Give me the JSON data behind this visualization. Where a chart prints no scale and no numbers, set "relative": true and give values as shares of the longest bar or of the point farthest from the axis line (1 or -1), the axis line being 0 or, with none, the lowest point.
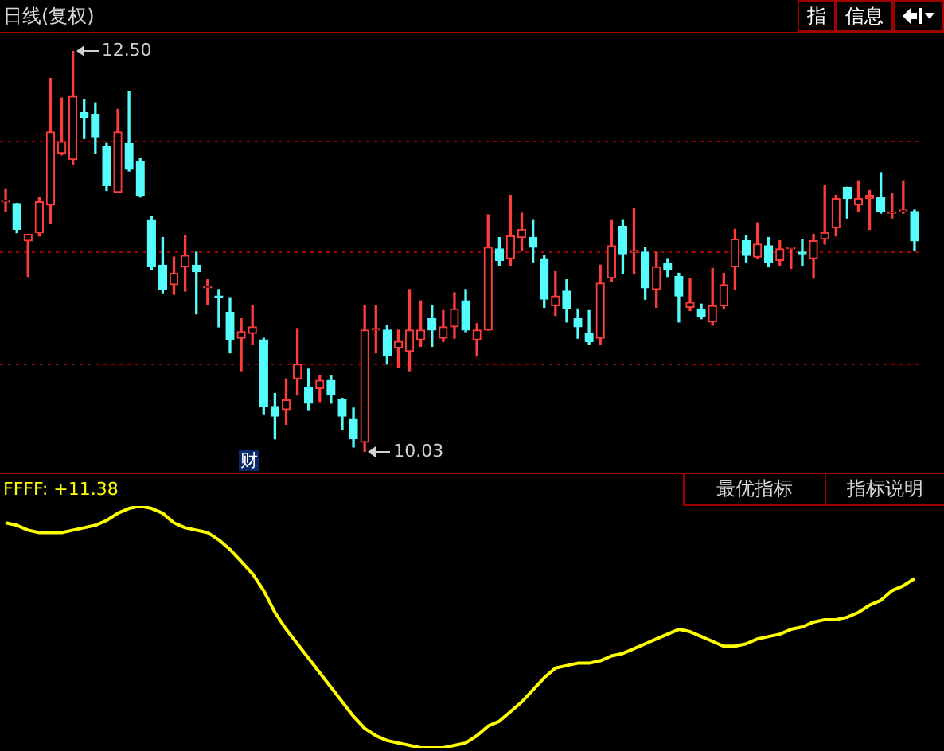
{
  "chart_data": [
    {
      "type": "candlestick",
      "title": "日线(复权)",
      "grid": "y",
      "categories": [
        null,
        null,
        null,
        null,
        null,
        null,
        null,
        null,
        null,
        null,
        null,
        null,
        null,
        null,
        null,
        null,
        null,
        null,
        null,
        null,
        null,
        null,
        null,
        null,
        null,
        null,
        null,
        null,
        null,
        null,
        null,
        null,
        null,
        null,
        null,
        null,
        null,
        null,
        null,
        null,
        null,
        null,
        null,
        null,
        null,
        null,
        null,
        null,
        null,
        null,
        null,
        null,
        null,
        null,
        null,
        null,
        null,
        null,
        null,
        null,
        null,
        null,
        null,
        null,
        null,
        null,
        null,
        null,
        null,
        null,
        null,
        null,
        null,
        null,
        null,
        null,
        null,
        null,
        null,
        null,
        null,
        null
      ],
      "yticks": [
        {
          "value": 10.57,
          "label": null
        },
        {
          "value": 11.26,
          "label": null
        },
        {
          "value": 11.94,
          "label": null
        }
      ],
      "ohlc": [
        [
          11.57,
          11.65,
          11.51,
          11.57
        ],
        [
          11.56,
          11.56,
          11.38,
          11.4
        ],
        [
          11.33,
          11.37,
          11.11,
          11.37
        ],
        [
          11.38,
          11.6,
          11.36,
          11.57
        ],
        [
          11.55,
          12.33,
          11.44,
          12.0
        ],
        [
          11.87,
          12.21,
          11.86,
          11.94
        ],
        [
          11.83,
          12.5,
          11.8,
          12.22
        ],
        [
          12.12,
          12.2,
          11.96,
          12.09
        ],
        [
          12.11,
          12.18,
          11.87,
          11.97
        ],
        [
          11.91,
          11.93,
          11.64,
          11.67
        ],
        [
          11.63,
          12.14,
          11.63,
          12.0
        ],
        [
          11.93,
          12.25,
          11.76,
          11.77
        ],
        [
          11.82,
          11.84,
          11.6,
          11.61
        ],
        [
          11.46,
          11.48,
          11.15,
          11.17
        ],
        [
          11.18,
          11.35,
          11.01,
          11.03
        ],
        [
          11.06,
          11.23,
          11.0,
          11.13
        ],
        [
          11.17,
          11.36,
          11.02,
          11.24
        ],
        [
          11.18,
          11.26,
          10.88,
          11.14
        ],
        [
          11.04,
          11.09,
          10.94,
          11.04
        ],
        [
          10.99,
          11.03,
          10.8,
          10.98
        ],
        [
          10.89,
          10.98,
          10.64,
          10.72
        ],
        [
          10.73,
          10.85,
          10.53,
          10.77
        ],
        [
          10.76,
          10.93,
          10.69,
          10.8
        ],
        [
          10.72,
          10.73,
          10.26,
          10.31
        ],
        [
          10.31,
          10.39,
          10.11,
          10.25
        ],
        [
          10.29,
          10.48,
          10.2,
          10.35
        ],
        [
          10.48,
          10.79,
          10.38,
          10.57
        ],
        [
          10.43,
          10.54,
          10.29,
          10.33
        ],
        [
          10.42,
          10.5,
          10.34,
          10.47
        ],
        [
          10.47,
          10.5,
          10.33,
          10.38
        ],
        [
          10.35,
          10.36,
          10.17,
          10.25
        ],
        [
          10.23,
          10.3,
          10.06,
          10.11
        ],
        [
          10.09,
          10.93,
          10.03,
          10.78
        ],
        [
          10.78,
          10.93,
          10.64,
          10.78
        ],
        [
          10.78,
          10.81,
          10.57,
          10.62
        ],
        [
          10.67,
          10.78,
          10.55,
          10.71
        ],
        [
          10.65,
          11.03,
          10.53,
          10.78
        ],
        [
          10.72,
          10.96,
          10.68,
          10.78
        ],
        [
          10.85,
          10.93,
          10.68,
          10.78
        ],
        [
          10.73,
          10.9,
          10.71,
          10.8
        ],
        [
          10.8,
          11.01,
          10.73,
          10.91
        ],
        [
          10.96,
          11.03,
          10.77,
          10.78
        ],
        [
          10.72,
          10.82,
          10.62,
          10.78
        ],
        [
          10.78,
          11.49,
          10.78,
          11.29
        ],
        [
          11.28,
          11.35,
          11.18,
          11.21
        ],
        [
          11.22,
          11.61,
          11.18,
          11.36
        ],
        [
          11.35,
          11.5,
          11.27,
          11.4
        ],
        [
          11.35,
          11.46,
          11.2,
          11.29
        ],
        [
          11.22,
          11.24,
          10.92,
          10.97
        ],
        [
          10.93,
          11.14,
          10.87,
          10.99
        ],
        [
          11.02,
          11.09,
          10.83,
          10.91
        ],
        [
          10.85,
          10.91,
          10.73,
          10.8
        ],
        [
          10.76,
          10.9,
          10.69,
          10.71
        ],
        [
          10.73,
          11.18,
          10.69,
          11.07
        ],
        [
          11.1,
          11.46,
          11.08,
          11.3
        ],
        [
          11.42,
          11.46,
          11.13,
          11.25
        ],
        [
          11.26,
          11.53,
          11.13,
          11.26
        ],
        [
          11.26,
          11.29,
          10.97,
          11.04
        ],
        [
          11.03,
          11.26,
          10.92,
          11.17
        ],
        [
          11.19,
          11.22,
          11.11,
          11.15
        ],
        [
          11.11,
          11.13,
          10.83,
          10.99
        ],
        [
          10.92,
          11.1,
          10.9,
          10.95
        ],
        [
          10.91,
          10.94,
          10.85,
          10.86
        ],
        [
          10.83,
          11.16,
          10.81,
          10.93
        ],
        [
          10.93,
          11.13,
          10.91,
          11.06
        ],
        [
          11.17,
          11.4,
          11.03,
          11.34
        ],
        [
          11.33,
          11.36,
          11.2,
          11.24
        ],
        [
          11.23,
          11.44,
          11.22,
          11.31
        ],
        [
          11.3,
          11.35,
          11.17,
          11.2
        ],
        [
          11.21,
          11.33,
          11.18,
          11.28
        ],
        [
          11.28,
          11.29,
          11.16,
          11.28
        ],
        [
          11.26,
          11.34,
          11.18,
          11.25
        ],
        [
          11.22,
          11.37,
          11.1,
          11.33
        ],
        [
          11.34,
          11.67,
          11.31,
          11.38
        ],
        [
          11.41,
          11.61,
          11.36,
          11.59
        ],
        [
          11.66,
          11.66,
          11.47,
          11.59
        ],
        [
          11.55,
          11.7,
          11.51,
          11.59
        ],
        [
          11.59,
          11.64,
          11.4,
          11.61
        ],
        [
          11.6,
          11.75,
          11.5,
          11.51
        ],
        [
          11.5,
          11.62,
          11.47,
          11.5
        ],
        [
          11.51,
          11.7,
          11.5,
          11.51
        ],
        [
          11.51,
          11.52,
          11.27,
          11.33
        ]
      ],
      "annotations": [
        "12.50",
        "10.03",
        "财",
        "指",
        "信息"
      ]
    },
    {
      "type": "line",
      "title": "FFFF: +11.38",
      "relative": true,
      "color": "#ffff00",
      "categories": [
        null,
        null,
        null,
        null,
        null,
        null,
        null,
        null,
        null,
        null,
        null,
        null,
        null,
        null,
        null,
        null,
        null,
        null,
        null,
        null,
        null,
        null,
        null,
        null,
        null,
        null,
        null,
        null,
        null,
        null,
        null,
        null,
        null,
        null,
        null,
        null,
        null,
        null,
        null,
        null,
        null,
        null,
        null,
        null,
        null,
        null,
        null,
        null,
        null,
        null,
        null,
        null,
        null,
        null,
        null,
        null,
        null,
        null,
        null,
        null,
        null,
        null,
        null,
        null,
        null,
        null,
        null,
        null,
        null,
        null,
        null,
        null,
        null,
        null,
        null,
        null,
        null,
        null,
        null,
        null,
        null,
        null
      ],
      "values": [
        0.93,
        0.92,
        0.9,
        0.89,
        0.89,
        0.89,
        0.9,
        0.91,
        0.92,
        0.94,
        0.97,
        0.99,
        1.0,
        0.99,
        0.97,
        0.93,
        0.91,
        0.9,
        0.89,
        0.86,
        0.82,
        0.77,
        0.72,
        0.65,
        0.56,
        0.49,
        0.43,
        0.37,
        0.31,
        0.25,
        0.19,
        0.13,
        0.08,
        0.05,
        0.03,
        0.02,
        0.01,
        0,
        0,
        0,
        0.01,
        0.02,
        0.05,
        0.09,
        0.11,
        0.15,
        0.19,
        0.24,
        0.29,
        0.33,
        0.34,
        0.35,
        0.35,
        0.36,
        0.38,
        0.39,
        0.41,
        0.43,
        0.45,
        0.47,
        0.49,
        0.48,
        0.46,
        0.44,
        0.42,
        0.42,
        0.43,
        0.45,
        0.46,
        0.47,
        0.49,
        0.5,
        0.52,
        0.53,
        0.53,
        0.54,
        0.56,
        0.59,
        0.61,
        0.65,
        0.67,
        0.7
      ],
      "annotations": [
        "最优指标",
        "指标说明"
      ]
    }
  ]
}
